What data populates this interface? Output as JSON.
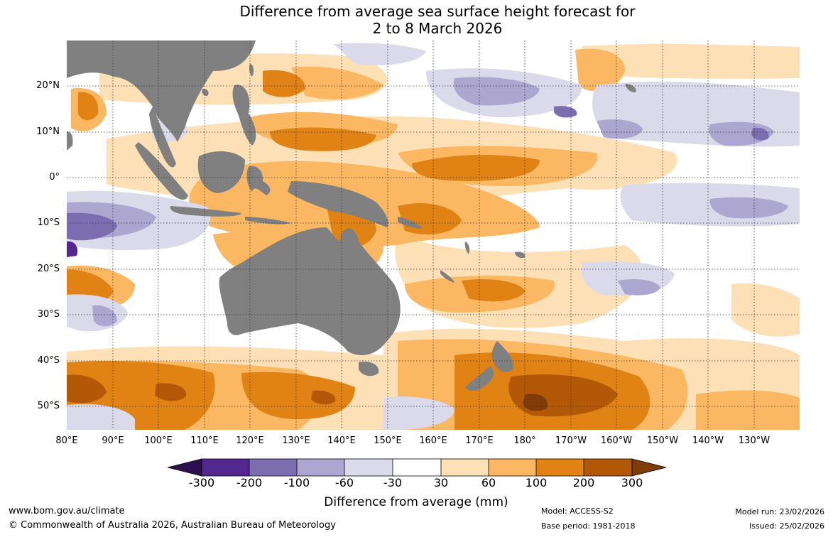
{
  "title": {
    "line1": "Difference from average sea surface height forecast for",
    "line2": "2 to 8 March 2026"
  },
  "map": {
    "region": "Indian and Pacific Ocean, Australia",
    "lat_labels": [
      "20°N",
      "10°N",
      "0°",
      "10°S",
      "20°S",
      "30°S",
      "40°S",
      "50°S"
    ],
    "lon_labels": [
      "80°E",
      "90°E",
      "100°E",
      "110°E",
      "120°E",
      "130°E",
      "140°E",
      "150°E",
      "160°E",
      "170°E",
      "180°",
      "170°W",
      "160°W",
      "150°W",
      "140°W",
      "130°W"
    ],
    "land_color": "#808080"
  },
  "legend": {
    "title": "Difference from average (mm)",
    "ticks": [
      "-300",
      "-200",
      "-100",
      "-60",
      "-30",
      "30",
      "60",
      "100",
      "200",
      "300"
    ],
    "colors": [
      "#2d0f4e",
      "#54278f",
      "#7b6daf",
      "#aca6d0",
      "#dadaeb",
      "#ffffff",
      "#fee0b6",
      "#fbb761",
      "#e08214",
      "#b35806",
      "#7f3b08"
    ]
  },
  "footer": {
    "website": "www.bom.gov.au/climate",
    "copyright": "© Commonwealth of Australia 2026, Australian Bureau of Meteorology",
    "model": "Model: ACCESS-S2",
    "base_period": "Base period: 1981-2018",
    "model_run": "Model run: 23/02/2026",
    "issued": "Issued: 25/02/2026"
  }
}
